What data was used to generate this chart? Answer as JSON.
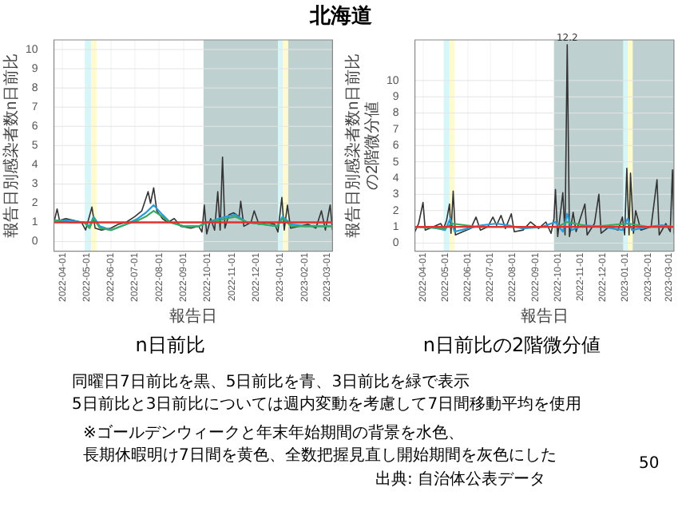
{
  "chart_data": [
    {
      "type": "line",
      "title": "n日前比",
      "xlabel": "報告日",
      "ylabel": "報告日別感染者数n日前比",
      "xlim": [
        "2022-03-21",
        "2023-03-08"
      ],
      "xticks": [
        "2022-04-01",
        "2022-05-01",
        "2022-06-01",
        "2022-07-01",
        "2022-08-01",
        "2022-09-01",
        "2022-10-01",
        "2022-11-01",
        "2022-12-01",
        "2023-01-01",
        "2023-02-01",
        "2023-03-01"
      ],
      "ylim": [
        -0.5,
        10.5
      ],
      "yticks": [
        0,
        1,
        2,
        3,
        4,
        5,
        6,
        7,
        8,
        9,
        10
      ],
      "grid": true,
      "bands": [
        {
          "axis": "x",
          "from": "2022-09-26",
          "to": "2023-03-08",
          "color": "#bfd0d0"
        },
        {
          "axis": "x",
          "from": "2022-04-29",
          "to": "2022-05-07",
          "color": "#d6f6f8"
        },
        {
          "axis": "x",
          "from": "2022-05-07",
          "to": "2022-05-14",
          "color": "#fffbcf"
        },
        {
          "axis": "x",
          "from": "2022-12-29",
          "to": "2023-01-04",
          "color": "#d6f6f8"
        },
        {
          "axis": "x",
          "from": "2023-01-04",
          "to": "2023-01-11",
          "color": "#fffbcf"
        }
      ],
      "ref_lines": [
        {
          "axis": "y",
          "value": 1,
          "color": "#e03030"
        }
      ],
      "series": [
        {
          "color": "#333333",
          "x": [
            "2022-03-21",
            "2022-03-25",
            "2022-03-28",
            "2022-04-05",
            "2022-04-15",
            "2022-04-25",
            "2022-04-30",
            "2022-05-08",
            "2022-05-12",
            "2022-05-20",
            "2022-06-01",
            "2022-06-10",
            "2022-06-20",
            "2022-07-01",
            "2022-07-10",
            "2022-07-18",
            "2022-07-21",
            "2022-07-25",
            "2022-07-29",
            "2022-08-05",
            "2022-08-12",
            "2022-08-20",
            "2022-08-28",
            "2022-09-10",
            "2022-09-20",
            "2022-09-24",
            "2022-09-27",
            "2022-09-30",
            "2022-10-05",
            "2022-10-10",
            "2022-10-14",
            "2022-10-17",
            "2022-10-20",
            "2022-10-23",
            "2022-10-28",
            "2022-11-03",
            "2022-11-10",
            "2022-11-12",
            "2022-11-16",
            "2022-11-25",
            "2022-11-29",
            "2022-12-05",
            "2022-12-15",
            "2022-12-25",
            "2022-12-29",
            "2023-01-03",
            "2023-01-06",
            "2023-01-10",
            "2023-01-14",
            "2023-01-25",
            "2023-02-05",
            "2023-02-15",
            "2023-02-22",
            "2023-02-27",
            "2023-03-05",
            "2023-03-08"
          ],
          "values": [
            1.0,
            1.7,
            1.1,
            1.2,
            1.1,
            1.0,
            0.6,
            1.8,
            0.7,
            0.6,
            0.7,
            0.9,
            1.0,
            1.3,
            1.6,
            2.6,
            2.0,
            2.8,
            1.6,
            1.2,
            1.0,
            1.2,
            0.8,
            0.7,
            0.8,
            0.5,
            1.9,
            0.4,
            1.2,
            0.6,
            2.6,
            0.6,
            4.4,
            0.7,
            1.4,
            1.5,
            1.3,
            2.1,
            0.8,
            1.0,
            1.6,
            0.9,
            1.0,
            0.9,
            0.5,
            2.3,
            0.6,
            1.9,
            0.7,
            0.8,
            0.9,
            0.7,
            1.6,
            0.6,
            1.9,
            0.6
          ]
        },
        {
          "color": "#2b9bd8",
          "x": [
            "2022-03-21",
            "2022-04-10",
            "2022-04-28",
            "2022-05-05",
            "2022-05-10",
            "2022-05-18",
            "2022-06-01",
            "2022-06-20",
            "2022-07-05",
            "2022-07-15",
            "2022-07-25",
            "2022-08-05",
            "2022-08-15",
            "2022-09-01",
            "2022-09-20",
            "2022-10-01",
            "2022-10-15",
            "2022-10-25",
            "2022-11-05",
            "2022-11-20",
            "2022-12-10",
            "2022-12-28",
            "2023-01-04",
            "2023-01-15",
            "2023-02-01",
            "2023-02-20",
            "2023-03-08"
          ],
          "values": [
            1.1,
            1.1,
            1.0,
            0.8,
            1.3,
            0.8,
            0.6,
            0.9,
            1.2,
            1.5,
            1.9,
            1.4,
            1.0,
            0.8,
            0.8,
            1.0,
            1.2,
            1.3,
            1.4,
            1.0,
            0.9,
            0.8,
            1.3,
            0.9,
            0.8,
            0.8,
            0.8
          ]
        },
        {
          "color": "#3aa860",
          "x": [
            "2022-03-21",
            "2022-04-10",
            "2022-04-28",
            "2022-05-05",
            "2022-05-10",
            "2022-05-18",
            "2022-06-01",
            "2022-06-20",
            "2022-07-05",
            "2022-07-15",
            "2022-07-25",
            "2022-08-05",
            "2022-08-15",
            "2022-09-01",
            "2022-09-20",
            "2022-10-01",
            "2022-10-15",
            "2022-10-25",
            "2022-11-05",
            "2022-11-20",
            "2022-12-10",
            "2022-12-28",
            "2023-01-04",
            "2023-01-15",
            "2023-02-01",
            "2023-02-20",
            "2023-03-08"
          ],
          "values": [
            1.1,
            1.0,
            1.0,
            0.7,
            1.2,
            0.7,
            0.6,
            0.9,
            1.1,
            1.3,
            1.6,
            1.3,
            1.0,
            0.8,
            0.8,
            1.0,
            1.1,
            1.2,
            1.3,
            1.0,
            0.9,
            0.8,
            1.2,
            0.8,
            0.8,
            0.8,
            0.8
          ]
        }
      ]
    },
    {
      "type": "line",
      "title": "n日前比の2階微分値",
      "xlabel": "報告日",
      "ylabel": [
        "報告日別感染者数n日前比",
        "の2階微分値"
      ],
      "xlim": [
        "2022-03-21",
        "2023-03-08"
      ],
      "xticks": [
        "2022-04-01",
        "2022-05-01",
        "2022-06-01",
        "2022-07-01",
        "2022-08-01",
        "2022-09-01",
        "2022-10-01",
        "2022-11-01",
        "2022-12-01",
        "2023-01-01",
        "2023-02-01",
        "2023-03-01"
      ],
      "ylim": [
        -0.5,
        12.5
      ],
      "yticks": [
        0,
        1,
        2,
        3,
        4,
        5,
        6,
        7,
        8,
        9,
        10
      ],
      "grid": true,
      "bands": [
        {
          "axis": "x",
          "from": "2022-09-26",
          "to": "2023-03-08",
          "color": "#bfd0d0"
        },
        {
          "axis": "x",
          "from": "2022-04-29",
          "to": "2022-05-07",
          "color": "#d6f6f8"
        },
        {
          "axis": "x",
          "from": "2022-05-07",
          "to": "2022-05-14",
          "color": "#fffbcf"
        },
        {
          "axis": "x",
          "from": "2022-12-29",
          "to": "2023-01-04",
          "color": "#d6f6f8"
        },
        {
          "axis": "x",
          "from": "2023-01-04",
          "to": "2023-01-11",
          "color": "#fffbcf"
        }
      ],
      "ref_lines": [
        {
          "axis": "y",
          "value": 1,
          "color": "#e03030"
        }
      ],
      "annotations": [
        {
          "text": "12.2",
          "x": "2022-10-14",
          "y": 12.2
        }
      ],
      "series": [
        {
          "color": "#333333",
          "x": [
            "2022-03-21",
            "2022-03-26",
            "2022-04-01",
            "2022-04-04",
            "2022-04-15",
            "2022-04-25",
            "2022-04-29",
            "2022-05-03",
            "2022-05-07",
            "2022-05-09",
            "2022-05-12",
            "2022-05-15",
            "2022-05-25",
            "2022-06-05",
            "2022-06-12",
            "2022-06-18",
            "2022-06-28",
            "2022-07-05",
            "2022-07-10",
            "2022-07-16",
            "2022-07-22",
            "2022-07-30",
            "2022-08-03",
            "2022-08-15",
            "2022-08-25",
            "2022-09-05",
            "2022-09-15",
            "2022-09-22",
            "2022-09-26",
            "2022-09-28",
            "2022-10-01",
            "2022-10-08",
            "2022-10-11",
            "2022-10-14",
            "2022-10-17",
            "2022-10-22",
            "2022-10-26",
            "2022-11-07",
            "2022-11-10",
            "2022-11-20",
            "2022-11-26",
            "2022-11-29",
            "2022-12-10",
            "2022-12-22",
            "2022-12-28",
            "2022-12-31",
            "2023-01-03",
            "2023-01-06",
            "2023-01-08",
            "2023-01-12",
            "2023-01-15",
            "2023-01-22",
            "2023-02-05",
            "2023-02-13",
            "2023-02-16",
            "2023-02-25",
            "2023-03-03",
            "2023-03-06",
            "2023-03-08"
          ],
          "values": [
            0.7,
            1.2,
            2.5,
            0.8,
            1.0,
            1.2,
            0.9,
            1.4,
            2.4,
            0.6,
            3.2,
            0.5,
            0.7,
            0.9,
            1.6,
            0.8,
            1.0,
            1.6,
            1.1,
            1.7,
            0.9,
            1.8,
            0.7,
            0.8,
            1.3,
            0.9,
            1.3,
            0.6,
            1.5,
            3.3,
            0.4,
            3.1,
            0.5,
            12.2,
            0.4,
            1.9,
            0.7,
            2.4,
            0.5,
            1.2,
            3.0,
            0.6,
            1.0,
            0.8,
            1.6,
            0.5,
            4.6,
            0.5,
            4.3,
            0.6,
            2.0,
            0.8,
            1.0,
            3.9,
            0.5,
            1.2,
            0.7,
            4.5,
            0.6
          ]
        },
        {
          "color": "#2b9bd8",
          "x": [
            "2022-03-21",
            "2022-04-10",
            "2022-05-01",
            "2022-05-08",
            "2022-05-14",
            "2022-06-01",
            "2022-06-20",
            "2022-07-10",
            "2022-07-25",
            "2022-08-15",
            "2022-09-10",
            "2022-09-28",
            "2022-10-08",
            "2022-10-14",
            "2022-10-20",
            "2022-11-05",
            "2022-12-01",
            "2022-12-28",
            "2023-01-04",
            "2023-01-10",
            "2023-02-01",
            "2023-02-20",
            "2023-03-08"
          ],
          "values": [
            1.0,
            1.0,
            0.8,
            1.5,
            0.7,
            0.9,
            1.1,
            1.2,
            1.1,
            0.9,
            1.0,
            1.3,
            0.7,
            1.8,
            0.8,
            1.1,
            1.0,
            0.8,
            1.5,
            0.8,
            1.0,
            1.1,
            1.0
          ]
        },
        {
          "color": "#3aa860",
          "x": [
            "2022-03-21",
            "2022-05-01",
            "2022-05-10",
            "2022-06-15",
            "2022-08-15",
            "2022-10-01",
            "2022-10-14",
            "2022-11-15",
            "2023-01-05",
            "2023-02-01",
            "2023-03-08"
          ],
          "values": [
            1.0,
            0.9,
            1.2,
            1.0,
            1.0,
            1.0,
            1.3,
            1.0,
            1.2,
            1.0,
            1.0
          ]
        }
      ]
    },
    {
      "type": "other",
      "title": "北海道",
      "annotations": [
        "同曜日7日前比を黒、5日前比を青、3日前比を緑で表示",
        "5日前比と3日前比については週内変動を考慮して7日間移動平均を使用",
        "※ゴールデンウィークと年末年始期間の背景を水色、",
        "長期休暇明け7日間を黄色、全数把握見直し開始期間を灰色にした",
        "出典: 自治体公表データ",
        "50"
      ]
    }
  ]
}
